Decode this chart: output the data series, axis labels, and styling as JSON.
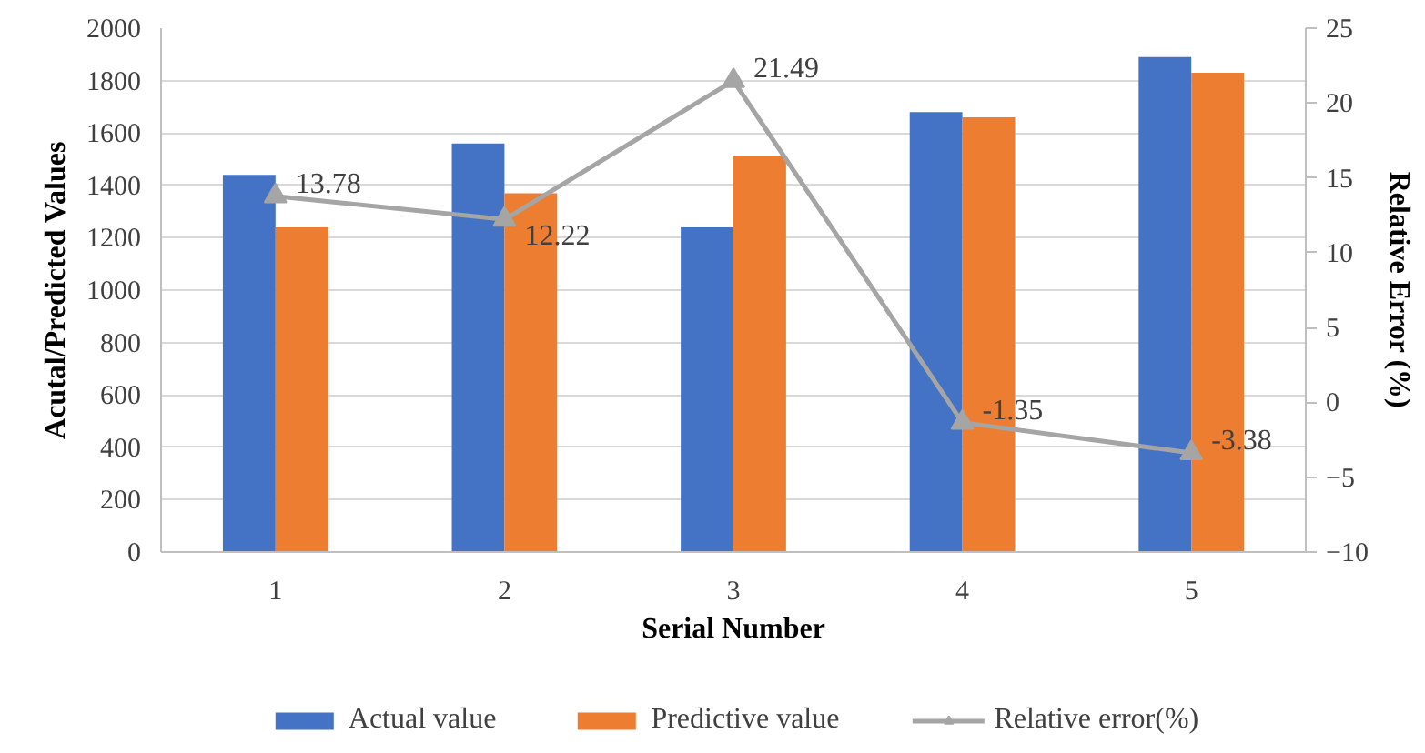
{
  "chart_data": {
    "type": "bar",
    "xlabel": "Serial Number",
    "ylabel": "Acutal/Predicted Values",
    "y2label": "Relative Error (%)",
    "categories": [
      "1",
      "2",
      "3",
      "4",
      "5"
    ],
    "series": [
      {
        "name": "Actual value",
        "color": "#4472c4",
        "values": [
          1440,
          1560,
          1240,
          1680,
          1890
        ]
      },
      {
        "name": "Predictive value",
        "color": "#ed7d31",
        "values": [
          1240,
          1370,
          1510,
          1660,
          1830
        ]
      },
      {
        "name": "Relative error(%)",
        "type": "line",
        "axis": "y2",
        "color": "#a5a5a5",
        "marker": "triangle",
        "values": [
          13.78,
          12.22,
          21.49,
          -1.35,
          -3.38
        ],
        "value_labels": [
          "13.78",
          "12.22",
          "21.49",
          "-1.35",
          "-3.38"
        ]
      }
    ],
    "ylim": [
      0,
      2000
    ],
    "yticks": [
      0,
      200,
      400,
      600,
      800,
      1000,
      1200,
      1400,
      1600,
      1800,
      2000
    ],
    "y2lim": [
      -10,
      25
    ],
    "y2ticks": [
      -10,
      -5,
      0,
      5,
      10,
      15,
      20,
      25
    ],
    "grid": "y",
    "legend": "bottom"
  }
}
